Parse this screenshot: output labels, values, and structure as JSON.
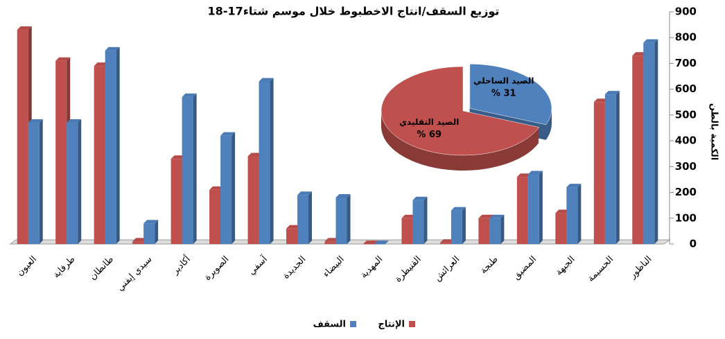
{
  "chart_data": [
    {
      "type": "bar",
      "title": "توزيع السقف/انتاج الاخطبوط خلال موسم شتاء17-18",
      "y_label": "الكمية بالطن",
      "categories": [
        "العيون",
        "طرفاية",
        "طانطان",
        "سيدي إيفني",
        "أكادير",
        "الصويرة",
        "آسفي",
        "الجديدة",
        "البيضاء",
        "المهدية",
        "القنيطرة",
        "العرائش",
        "طنجة",
        "المضيق",
        "الجبهة",
        "الحسيمة",
        "الناظور"
      ],
      "series": [
        {
          "name": "الإنتاج",
          "color": "#c0504d",
          "values": [
            830,
            710,
            690,
            10,
            330,
            210,
            340,
            60,
            10,
            0,
            100,
            5,
            100,
            260,
            120,
            550,
            730
          ]
        },
        {
          "name": "السقف",
          "color": "#4f81bd",
          "values": [
            470,
            470,
            750,
            80,
            570,
            420,
            630,
            190,
            180,
            0,
            170,
            130,
            100,
            270,
            220,
            580,
            780
          ]
        }
      ],
      "ylim": [
        0,
        900
      ],
      "yticks": [
        0,
        100,
        200,
        300,
        400,
        500,
        600,
        700,
        800,
        900
      ],
      "legend": "bottom"
    },
    {
      "type": "pie",
      "categories": [
        "الصيد الساحلي",
        "الصيد التقليدي"
      ],
      "values": [
        31,
        69
      ],
      "value_labels": [
        "% 31",
        "% 69"
      ],
      "colors": [
        "#4f81bd",
        "#c0504d"
      ]
    }
  ]
}
